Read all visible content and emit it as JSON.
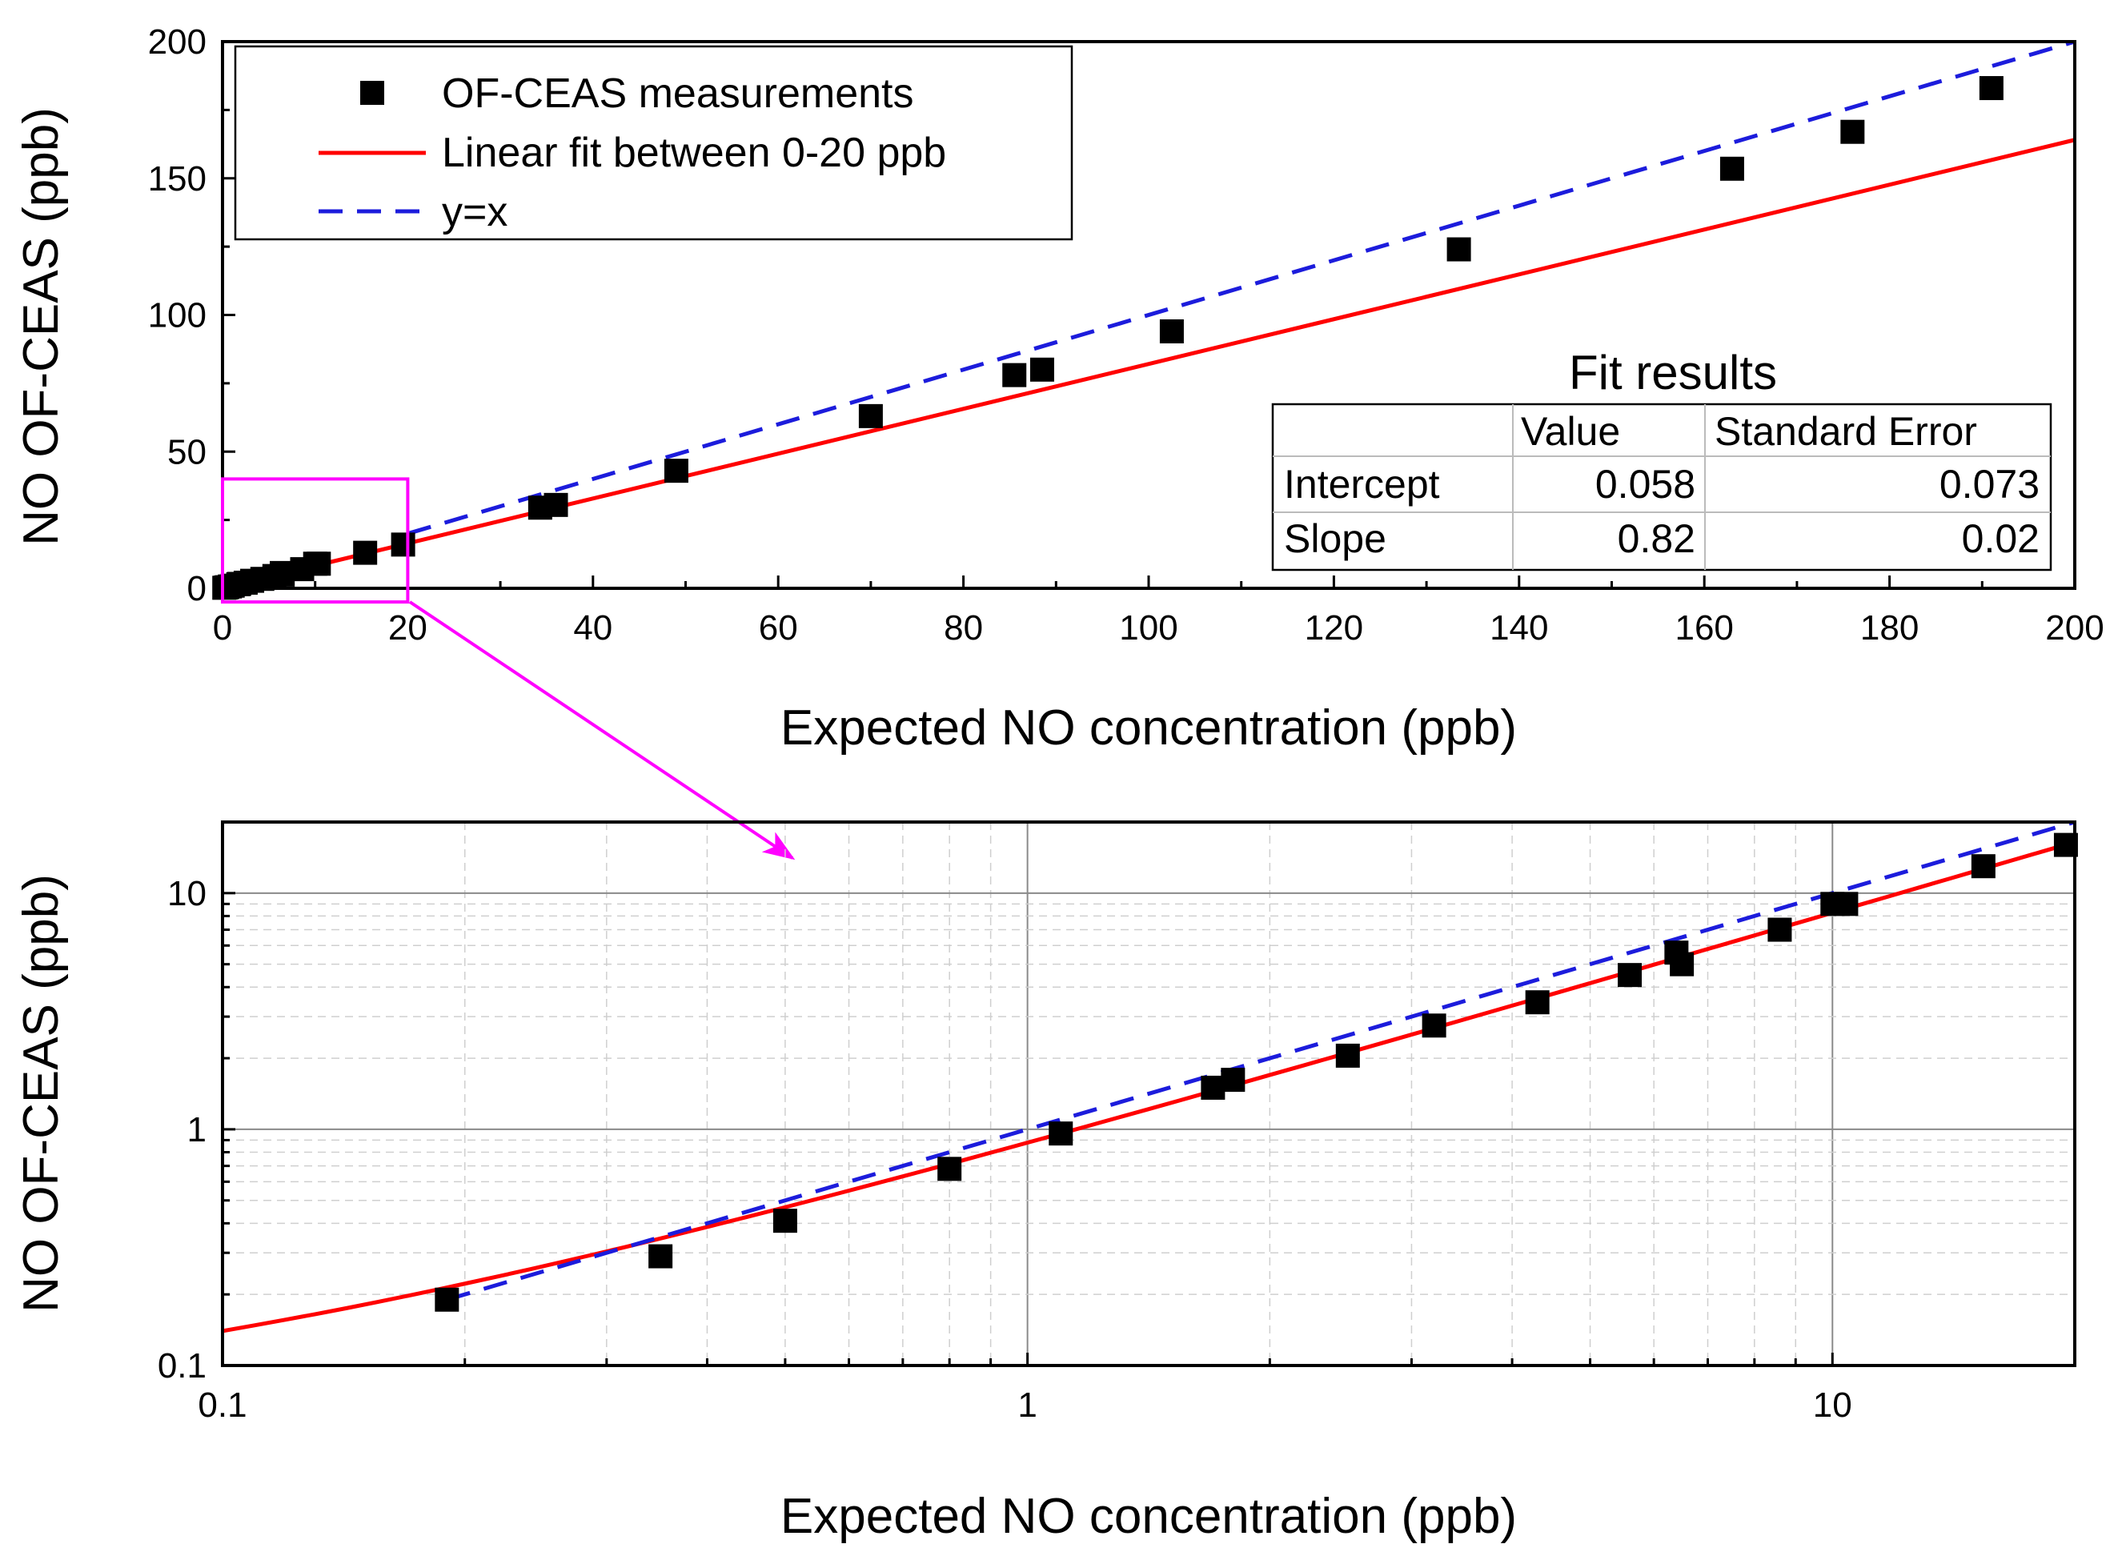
{
  "chart_data": [
    {
      "type": "scatter",
      "panel": "top",
      "xlabel": "Expected NO concentration (ppb)",
      "ylabel": "NO OF-CEAS (ppb)",
      "xlim": [
        0,
        200
      ],
      "ylim": [
        0,
        200
      ],
      "x_ticks": [
        "0",
        "20",
        "40",
        "60",
        "80",
        "100",
        "120",
        "140",
        "160",
        "180",
        "200"
      ],
      "y_ticks": [
        "0",
        "50",
        "100",
        "150",
        "200"
      ],
      "grid": false,
      "legend": {
        "position": "top-left",
        "entries": [
          {
            "label": "OF-CEAS measurements",
            "symbol": "square",
            "color": "#000000"
          },
          {
            "label": "Linear fit between 0-20 ppb",
            "symbol": "line",
            "color": "#ff0000"
          },
          {
            "label": "y=x",
            "symbol": "dash",
            "color": "#1c1cdc"
          }
        ]
      },
      "series": [
        {
          "name": "OF-CEAS measurements",
          "x": [
            0.19,
            0.35,
            0.5,
            0.8,
            1.1,
            1.7,
            1.8,
            2.5,
            3.2,
            4.3,
            5.6,
            6.4,
            6.5,
            8.6,
            10,
            10.4,
            15.4,
            19.5,
            34.3,
            36,
            49,
            70,
            85.5,
            88.5,
            102.5,
            133.5,
            163,
            176,
            191
          ],
          "y": [
            0.19,
            0.29,
            0.41,
            0.68,
            0.96,
            1.5,
            1.62,
            2.05,
            2.75,
            3.45,
            4.5,
            5.6,
            5.0,
            7.0,
            9.0,
            9.0,
            13.0,
            16.0,
            29.5,
            30.5,
            43,
            63,
            78,
            80,
            94,
            124,
            153.5,
            167,
            183
          ]
        },
        {
          "name": "Linear fit between 0-20 ppb",
          "style": "solid",
          "intercept": 0.058,
          "slope": 0.82
        },
        {
          "name": "y=x",
          "style": "dash",
          "intercept": 0,
          "slope": 1,
          "x_range": [
            20,
            200
          ]
        }
      ],
      "fit_results": {
        "title": "Fit results",
        "header": [
          "",
          "Value",
          "Standard Error"
        ],
        "rows": [
          [
            "Intercept",
            "0.058",
            "0.073"
          ],
          [
            "Slope",
            "0.82",
            "0.02"
          ]
        ]
      },
      "zoom_box": {
        "x_range": [
          0,
          20
        ],
        "y_range": [
          -5,
          40
        ],
        "color": "#ff00ff"
      }
    },
    {
      "type": "scatter",
      "panel": "bottom",
      "scale": "log-log",
      "xlabel": "Expected NO concentration (ppb)",
      "ylabel": "NO OF-CEAS (ppb)",
      "xlim": [
        0.1,
        20
      ],
      "ylim": [
        0.1,
        20
      ],
      "x_ticks": [
        "0.1",
        "1",
        "10"
      ],
      "y_ticks": [
        "0.1",
        "1",
        "10"
      ],
      "grid": true,
      "series": [
        {
          "name": "OF-CEAS measurements",
          "x": [
            0.19,
            0.35,
            0.5,
            0.8,
            1.1,
            1.7,
            1.8,
            2.5,
            3.2,
            4.3,
            5.6,
            6.4,
            6.5,
            8.6,
            10,
            10.4,
            15.4,
            19.5
          ],
          "y": [
            0.19,
            0.29,
            0.41,
            0.68,
            0.96,
            1.5,
            1.62,
            2.05,
            2.75,
            3.45,
            4.5,
            5.6,
            5.0,
            7.0,
            9.0,
            9.0,
            13.0,
            16.0
          ]
        },
        {
          "name": "Linear fit between 0-20 ppb",
          "style": "solid",
          "intercept": 0.058,
          "slope": 0.82
        },
        {
          "name": "y=x",
          "style": "dash",
          "intercept": 0,
          "slope": 1,
          "x_range": [
            0.19,
            20
          ]
        }
      ]
    }
  ],
  "colors": {
    "fit_line": "#ff0000",
    "identity_line": "#1c1cdc",
    "zoom": "#ff00ff",
    "marker": "#000000"
  }
}
